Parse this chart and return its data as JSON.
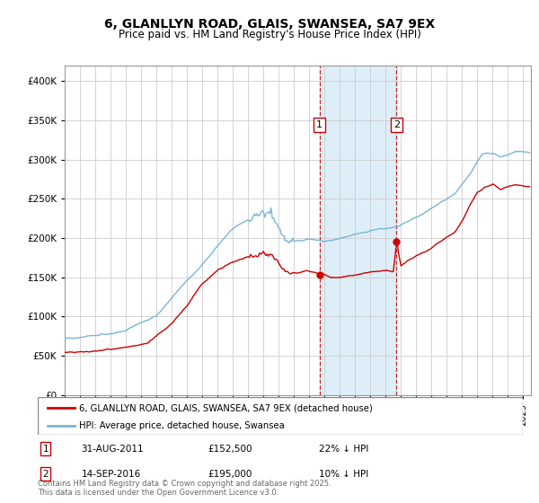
{
  "title": "6, GLANLLYN ROAD, GLAIS, SWANSEA, SA7 9EX",
  "subtitle": "Price paid vs. HM Land Registry's House Price Index (HPI)",
  "background_color": "#ffffff",
  "plot_bg_color": "#ffffff",
  "hpi_color": "#7ab4d8",
  "price_color": "#cc0000",
  "sale1_date_label": "31-AUG-2011",
  "sale1_price": 152500,
  "sale1_hpi_diff": "22% ↓ HPI",
  "sale2_date_label": "14-SEP-2016",
  "sale2_price": 195000,
  "sale2_hpi_diff": "10% ↓ HPI",
  "legend_line1": "6, GLANLLYN ROAD, GLAIS, SWANSEA, SA7 9EX (detached house)",
  "legend_line2": "HPI: Average price, detached house, Swansea",
  "footer": "Contains HM Land Registry data © Crown copyright and database right 2025.\nThis data is licensed under the Open Government Licence v3.0.",
  "ylim": [
    0,
    420000
  ],
  "yticks": [
    0,
    50000,
    100000,
    150000,
    200000,
    250000,
    300000,
    350000,
    400000
  ],
  "sale1_year": 2011.67,
  "sale2_year": 2016.71,
  "shaded_color": "#ddeef8",
  "vline_color": "#cc0000"
}
